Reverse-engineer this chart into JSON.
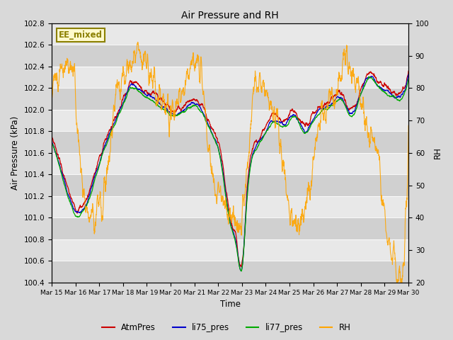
{
  "title": "Air Pressure and RH",
  "ylabel_left": "Air Pressure (kPa)",
  "ylabel_right": "RH",
  "xlabel": "Time",
  "ylim_left": [
    100.4,
    102.8
  ],
  "ylim_right": [
    20,
    100
  ],
  "annotation": "EE_mixed",
  "annotation_color": "#8B8000",
  "annotation_bg": "#FFFACD",
  "bg_color": "#d9d9d9",
  "plot_bg_light": "#e8e8e8",
  "plot_bg_dark": "#d0d0d0",
  "line_colors": {
    "AtmPres": "#cc0000",
    "li75_pres": "#0000cc",
    "li77_pres": "#00aa00",
    "RH": "#ffa500"
  },
  "xtick_labels": [
    "Mar 15",
    "Mar 16",
    "Mar 17",
    "Mar 18",
    "Mar 19",
    "Mar 20",
    "Mar 21",
    "Mar 22",
    "Mar 23",
    "Mar 24",
    "Mar 25",
    "Mar 26",
    "Mar 27",
    "Mar 28",
    "Mar 29",
    "Mar 30"
  ],
  "yticks_left": [
    100.4,
    100.6,
    100.8,
    101.0,
    101.2,
    101.4,
    101.6,
    101.8,
    102.0,
    102.2,
    102.4,
    102.6,
    102.8
  ],
  "yticks_right": [
    20,
    30,
    40,
    50,
    60,
    70,
    80,
    90,
    100
  ],
  "n_points": 2000,
  "seed": 7
}
